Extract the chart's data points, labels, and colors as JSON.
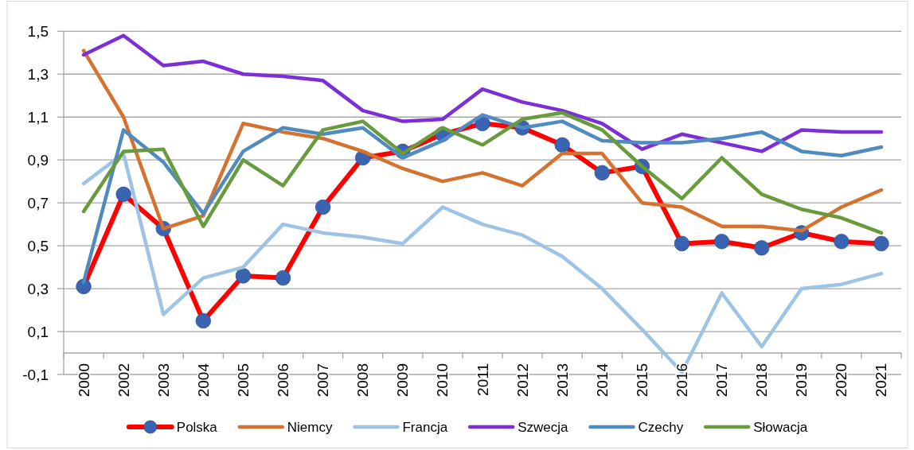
{
  "chart_data": {
    "type": "line",
    "categories": [
      "2000",
      "2002",
      "2003",
      "2004",
      "2005",
      "2006",
      "2007",
      "2008",
      "2009",
      "2010",
      "2011",
      "2012",
      "2013",
      "2014",
      "2015",
      "2016",
      "2017",
      "2018",
      "2019",
      "2020",
      "2021"
    ],
    "ylim": [
      -0.1,
      1.5
    ],
    "yticks": [
      {
        "value": -0.1,
        "label": "-0,1"
      },
      {
        "value": 0.1,
        "label": "0,1"
      },
      {
        "value": 0.3,
        "label": "0,3"
      },
      {
        "value": 0.5,
        "label": "0,5"
      },
      {
        "value": 0.7,
        "label": "0,7"
      },
      {
        "value": 0.9,
        "label": "0,9"
      },
      {
        "value": 1.1,
        "label": "1,1"
      },
      {
        "value": 1.3,
        "label": "1,3"
      },
      {
        "value": 1.5,
        "label": "1,5"
      }
    ],
    "grid": "y",
    "legend": "bottom",
    "line_style": "solid",
    "series": [
      {
        "name": "Polska",
        "color": "#ff0000",
        "marker": "circle",
        "colors": [
          "#3a63b2",
          "#3a63b2",
          "#3a63b2",
          "#3a63b2",
          "#3a63b2",
          "#3a63b2",
          "#3a63b2",
          "#3a63b2",
          "#3a63b2",
          "#3a63b2",
          "#3a63b2",
          "#3a63b2",
          "#3a63b2",
          "#3a63b2",
          "#3a63b2",
          "#3a63b2",
          "#3a63b2",
          "#3a63b2",
          "#3a63b2",
          "#3a63b2",
          "#3a63b2"
        ],
        "values": [
          0.31,
          0.74,
          0.58,
          0.15,
          0.36,
          0.35,
          0.68,
          0.91,
          0.94,
          1.02,
          1.07,
          1.05,
          0.97,
          0.84,
          0.87,
          0.51,
          0.52,
          0.49,
          0.56,
          0.52,
          0.51
        ]
      },
      {
        "name": "Niemcy",
        "color": "#d5722f",
        "values": [
          1.41,
          1.1,
          0.58,
          0.64,
          1.07,
          1.03,
          1.0,
          0.94,
          0.86,
          0.8,
          0.84,
          0.78,
          0.93,
          0.93,
          0.7,
          0.68,
          0.59,
          0.59,
          0.57,
          0.68,
          0.76
        ]
      },
      {
        "name": "Francja",
        "color": "#9dc3e6",
        "values": [
          0.79,
          0.93,
          0.18,
          0.35,
          0.4,
          0.6,
          0.56,
          0.54,
          0.51,
          0.68,
          0.6,
          0.55,
          0.45,
          0.3,
          0.11,
          -0.09,
          0.28,
          0.03,
          0.3,
          0.32,
          0.37
        ]
      },
      {
        "name": "Szwecja",
        "color": "#7b2fd5",
        "values": [
          1.39,
          1.48,
          1.34,
          1.36,
          1.3,
          1.29,
          1.27,
          1.13,
          1.08,
          1.09,
          1.23,
          1.17,
          1.13,
          1.07,
          0.95,
          1.02,
          0.98,
          0.94,
          1.04,
          1.03,
          1.03
        ]
      },
      {
        "name": "Czechy",
        "color": "#4f8bc1",
        "values": [
          0.33,
          1.04,
          0.89,
          0.65,
          0.94,
          1.05,
          1.02,
          1.05,
          0.91,
          0.99,
          1.11,
          1.05,
          1.08,
          0.99,
          0.98,
          0.98,
          1.0,
          1.03,
          0.94,
          0.92,
          0.96
        ]
      },
      {
        "name": "Słowacja",
        "color": "#679b3d",
        "values": [
          0.66,
          0.94,
          0.95,
          0.59,
          0.9,
          0.78,
          1.04,
          1.08,
          0.93,
          1.05,
          0.97,
          1.09,
          1.12,
          1.04,
          0.87,
          0.72,
          0.91,
          0.74,
          0.67,
          0.63,
          0.56
        ]
      }
    ]
  }
}
